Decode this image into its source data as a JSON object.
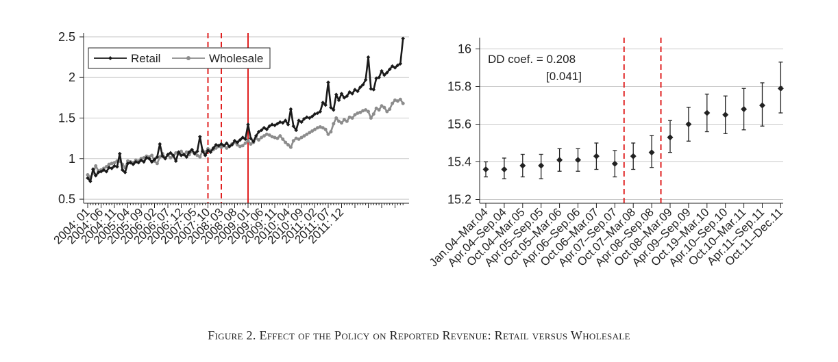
{
  "caption": "Figure 2. Effect of the Policy on Reported Revenue: Retail versus Wholesale",
  "chart_data": [
    {
      "type": "line",
      "ylim": [
        0.45,
        2.55
      ],
      "yticks": [
        0.5,
        1,
        1.5,
        2,
        2.5
      ],
      "ytick_labels": [
        "0.5",
        "1",
        "1.5",
        "2",
        "2.5"
      ],
      "x_start": "2004-01",
      "xtick_labels": [
        "2004: 01",
        "2004: 06",
        "2004: 11",
        "2005: 04",
        "2005: 09",
        "2006: 02",
        "2006: 07",
        "2006: 12",
        "2007: 05",
        "2007: 10",
        "2008: 03",
        "2008: 08",
        "2009: 01",
        "2009: 06",
        "2009: 11",
        "2010: 04",
        "2010: 09",
        "2011: 02",
        "2011: 07",
        "2011: 12"
      ],
      "legend_position": "top-left",
      "grid": true,
      "vlines": [
        {
          "x": "2007-10",
          "style": "dashed",
          "color": "#e02020"
        },
        {
          "x": "2008-03",
          "style": "dashed",
          "color": "#e02020"
        },
        {
          "x": "2009-01",
          "style": "solid",
          "color": "#e02020"
        }
      ],
      "series": [
        {
          "name": "Retail",
          "color": "#1a1a1a",
          "marker": "diamond",
          "values": [
            0.76,
            0.72,
            0.87,
            0.79,
            0.83,
            0.84,
            0.86,
            0.84,
            0.89,
            0.88,
            0.91,
            0.9,
            1.06,
            0.86,
            0.83,
            0.94,
            0.95,
            0.93,
            0.96,
            0.95,
            0.98,
            0.96,
            1.01,
            1.0,
            0.96,
            0.99,
            1.02,
            1.18,
            1.03,
            1.0,
            1.05,
            1.07,
            1.04,
            0.97,
            1.08,
            1.04,
            1.05,
            1.02,
            1.08,
            1.11,
            1.06,
            1.09,
            1.27,
            1.09,
            1.04,
            1.1,
            1.08,
            1.13,
            1.17,
            1.16,
            1.18,
            1.16,
            1.19,
            1.15,
            1.17,
            1.22,
            1.2,
            1.23,
            1.26,
            1.24,
            1.42,
            1.25,
            1.21,
            1.28,
            1.33,
            1.35,
            1.38,
            1.36,
            1.4,
            1.42,
            1.41,
            1.43,
            1.45,
            1.44,
            1.47,
            1.42,
            1.61,
            1.4,
            1.35,
            1.47,
            1.45,
            1.49,
            1.51,
            1.5,
            1.52,
            1.55,
            1.56,
            1.58,
            1.69,
            1.66,
            1.94,
            1.63,
            1.6,
            1.79,
            1.72,
            1.8,
            1.75,
            1.77,
            1.82,
            1.8,
            1.85,
            1.83,
            1.88,
            1.91,
            1.97,
            2.25,
            1.86,
            1.85,
            1.99,
            2.0,
            2.08,
            2.03,
            2.06,
            2.1,
            2.14,
            2.12,
            2.15,
            2.17,
            2.48
          ]
        },
        {
          "name": "Wholesale",
          "color": "#8c8c8c",
          "marker": "circle",
          "values": [
            0.8,
            0.77,
            0.82,
            0.91,
            0.85,
            0.86,
            0.88,
            0.9,
            0.93,
            0.94,
            0.95,
            0.97,
            0.97,
            0.93,
            0.89,
            0.97,
            0.96,
            0.95,
            0.98,
            0.97,
            1.0,
            1.01,
            1.03,
            1.02,
            1.04,
            0.97,
            0.94,
            1.02,
            1.06,
            1.01,
            1.04,
            1.01,
            1.03,
            1.07,
            1.06,
            1.09,
            1.05,
            1.08,
            1.05,
            1.09,
            1.07,
            1.04,
            1.02,
            1.1,
            1.08,
            1.12,
            1.1,
            1.11,
            1.13,
            1.15,
            1.14,
            1.16,
            1.13,
            1.15,
            1.18,
            1.2,
            1.17,
            1.15,
            1.16,
            1.19,
            1.22,
            1.18,
            1.2,
            1.25,
            1.23,
            1.26,
            1.28,
            1.3,
            1.29,
            1.27,
            1.26,
            1.25,
            1.28,
            1.24,
            1.2,
            1.17,
            1.14,
            1.22,
            1.25,
            1.24,
            1.26,
            1.28,
            1.3,
            1.32,
            1.34,
            1.36,
            1.38,
            1.39,
            1.38,
            1.36,
            1.3,
            1.33,
            1.43,
            1.5,
            1.46,
            1.44,
            1.48,
            1.46,
            1.51,
            1.5,
            1.54,
            1.56,
            1.57,
            1.59,
            1.6,
            1.58,
            1.5,
            1.55,
            1.62,
            1.6,
            1.65,
            1.63,
            1.58,
            1.61,
            1.68,
            1.72,
            1.71,
            1.73,
            1.68
          ]
        }
      ]
    },
    {
      "type": "scatter",
      "ylim": [
        15.18,
        16.06
      ],
      "yticks": [
        15.2,
        15.4,
        15.6,
        15.8,
        16
      ],
      "ytick_labels": [
        "15.2",
        "15.4",
        "15.6",
        "15.8",
        "16"
      ],
      "categories": [
        "Jan.04–Mar.04",
        "Apr.04–Sep.04",
        "Oct.04–Mar.05",
        "Apr.05–Sep.05",
        "Oct.05–Mar.06",
        "Apr.06–Sep.06",
        "Oct.06–Mar.07",
        "Apr.07–Sep.07",
        "Oct.07–Mar.08",
        "Apr.08–Sep.08",
        "Oct.08–Mar.09",
        "Apr.09–Sep.09",
        "Oct.19–Mar.10",
        "Apr.10–Sep.10",
        "Oct.10–Mar.11",
        "Apr.11–Sep.11",
        "Oct.11–Dec.11"
      ],
      "values": [
        15.36,
        15.36,
        15.38,
        15.38,
        15.41,
        15.41,
        15.43,
        15.39,
        15.43,
        15.45,
        15.53,
        15.6,
        15.66,
        15.65,
        15.68,
        15.7,
        15.79
      ],
      "ci_low": [
        15.32,
        15.31,
        15.32,
        15.31,
        15.35,
        15.35,
        15.36,
        15.32,
        15.36,
        15.37,
        15.45,
        15.51,
        15.56,
        15.55,
        15.57,
        15.59,
        15.66
      ],
      "ci_high": [
        15.4,
        15.42,
        15.44,
        15.44,
        15.47,
        15.47,
        15.5,
        15.46,
        15.5,
        15.54,
        15.62,
        15.69,
        15.76,
        15.75,
        15.79,
        15.82,
        15.93
      ],
      "grid": true,
      "vlines_between": [
        [
          7,
          8
        ],
        [
          9,
          10
        ]
      ],
      "annotation": {
        "line1": "DD coef. = 0.208",
        "line2": "[0.041]"
      }
    }
  ]
}
